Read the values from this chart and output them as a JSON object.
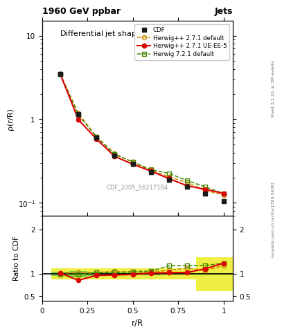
{
  "title_top": "1960 GeV ppbar",
  "title_top_right": "Jets",
  "plot_title": "Differential jet shapep (148 < p$_T$ < 166)",
  "xlabel": "r/R",
  "ylabel_main": "ρ(r/R)",
  "ylabel_ratio": "Ratio to CDF",
  "watermark": "CDF_2005_S6217184",
  "right_label_top": "Rivet 3.1.10, ≥ 3M events",
  "right_label_bottom": "mcplots.cern.ch [arXiv:1306.3436]",
  "x_data": [
    0.1,
    0.2,
    0.3,
    0.4,
    0.5,
    0.6,
    0.7,
    0.8,
    0.9,
    1.0
  ],
  "cdf_y": [
    3.5,
    1.15,
    0.6,
    0.37,
    0.295,
    0.235,
    0.19,
    0.155,
    0.13,
    0.105
  ],
  "herwig271_default_y": [
    3.5,
    1.18,
    0.62,
    0.39,
    0.305,
    0.245,
    0.205,
    0.175,
    0.14,
    0.125
  ],
  "herwig271_ueee5_y": [
    3.5,
    0.99,
    0.58,
    0.36,
    0.29,
    0.24,
    0.195,
    0.16,
    0.145,
    0.13
  ],
  "herwig721_default_y": [
    3.48,
    1.13,
    0.615,
    0.38,
    0.31,
    0.25,
    0.225,
    0.185,
    0.155,
    0.13
  ],
  "ratio_herwig271_default": [
    1.02,
    1.025,
    1.03,
    1.055,
    1.035,
    1.04,
    1.08,
    1.13,
    1.075,
    1.19
  ],
  "ratio_herwig271_ueee5": [
    1.02,
    0.855,
    0.965,
    0.975,
    0.985,
    1.02,
    1.025,
    1.03,
    1.115,
    1.24
  ],
  "ratio_herwig721_default": [
    0.99,
    0.985,
    1.025,
    1.027,
    1.05,
    1.064,
    1.18,
    1.19,
    1.19,
    1.24
  ],
  "band_green_lo": [
    0.95,
    0.93,
    0.96,
    0.97,
    0.97,
    0.975,
    0.985,
    0.985,
    0.985,
    0.985
  ],
  "band_green_hi": [
    1.05,
    1.07,
    1.04,
    1.03,
    1.03,
    1.025,
    1.015,
    1.015,
    1.015,
    1.015
  ],
  "band_yellow_lo": [
    0.88,
    0.88,
    0.88,
    0.88,
    0.88,
    0.88,
    0.88,
    0.88,
    0.62,
    0.62
  ],
  "band_yellow_hi": [
    1.12,
    1.12,
    1.12,
    1.12,
    1.12,
    1.12,
    1.12,
    1.12,
    1.38,
    1.38
  ],
  "colors": {
    "cdf": "#1a1a1a",
    "herwig271_default": "#cc8800",
    "herwig271_ueee5": "#dd0000",
    "herwig721_default": "#448800",
    "band_green": "#88cc44",
    "band_yellow": "#eeee44"
  }
}
